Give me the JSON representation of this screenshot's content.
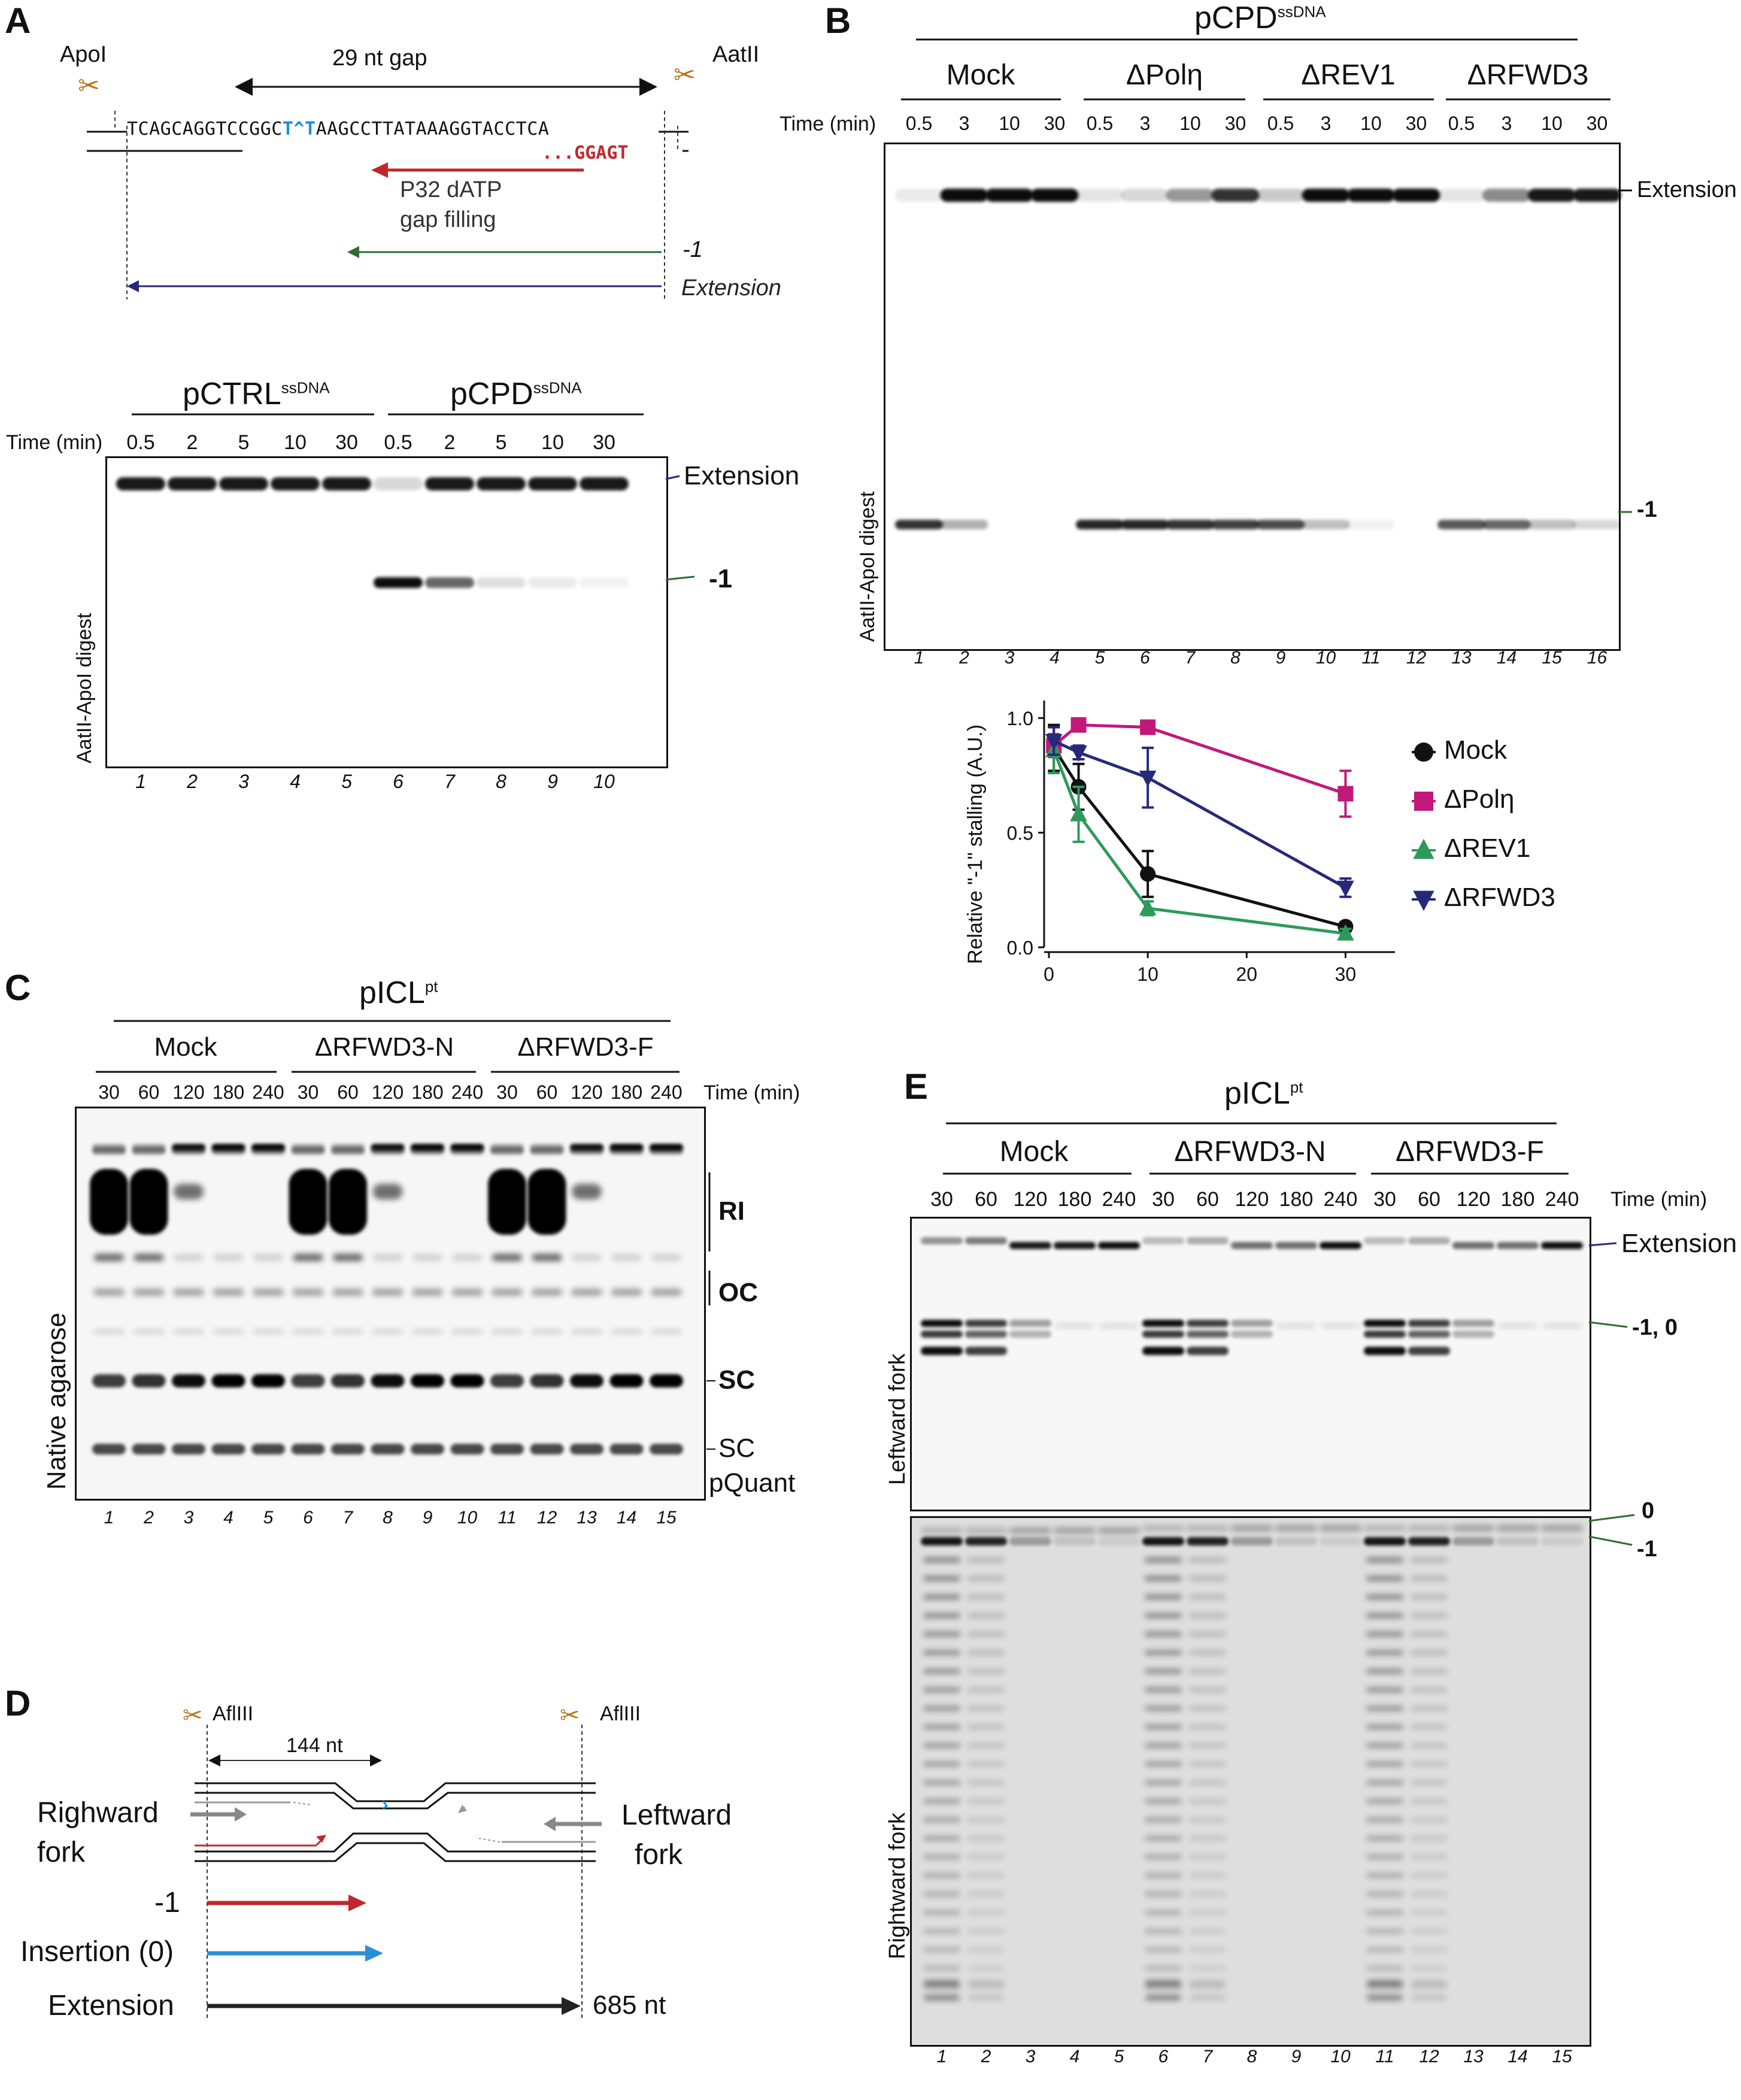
{
  "panels": {
    "A": "A",
    "B": "B",
    "C": "C",
    "D": "D",
    "E": "E"
  },
  "panelA": {
    "apoi": "ApoI",
    "aatii": "AatII",
    "gap": "29 nt gap",
    "seq_left": "TCAGCAGGTCCGGC",
    "seq_blue": "T^T",
    "seq_right": "AAGCCTTATAAAGGTACCTCA",
    "primer": "...GGAGT",
    "gapfill_l1": "P32 dATP",
    "gapfill_l2": "gap filling",
    "minus1": "-1",
    "extension": "Extension",
    "gel_left_title": "pCTRL",
    "gel_left_sup": "ssDNA",
    "gel_right_title": "pCPD",
    "gel_right_sup": "ssDNA",
    "time_label": "Time (min)",
    "times": [
      "0.5",
      "2",
      "5",
      "10",
      "30",
      "0.5",
      "2",
      "5",
      "10",
      "30"
    ],
    "lanes": [
      "1",
      "2",
      "3",
      "4",
      "5",
      "6",
      "7",
      "8",
      "9",
      "10"
    ],
    "band_ext": "Extension",
    "band_m1": "-1",
    "digest": "AatII-ApoI digest"
  },
  "panelB": {
    "title": "pCPD",
    "title_sup": "ssDNA",
    "groups": [
      "Mock",
      "ΔPolη",
      "ΔREV1",
      "ΔRFWD3"
    ],
    "time_label": "Time (min)",
    "times": [
      "0.5",
      "3",
      "10",
      "30",
      "0.5",
      "3",
      "10",
      "30",
      "0.5",
      "3",
      "10",
      "30",
      "0.5",
      "3",
      "10",
      "30"
    ],
    "lanes": [
      "1",
      "2",
      "3",
      "4",
      "5",
      "6",
      "7",
      "8",
      "9",
      "10",
      "11",
      "12",
      "13",
      "14",
      "15",
      "16"
    ],
    "band_ext": "Extension",
    "band_m1": "-1",
    "digest": "AatII-ApoI digest"
  },
  "chart_data": {
    "type": "line",
    "ylabel": "Relative \"-1\" stalling (A.U.)",
    "xlabel": "",
    "x": [
      0.5,
      3,
      10,
      30
    ],
    "xlim": [
      0,
      35
    ],
    "ylim": [
      0,
      1.05
    ],
    "xticks": [
      "0",
      "10",
      "20",
      "30"
    ],
    "yticks": [
      "0.0",
      "0.5",
      "1.0"
    ],
    "legend_position": "right",
    "series": [
      {
        "name": "Mock",
        "color": "#111111",
        "marker": "circle",
        "values": [
          0.87,
          0.7,
          0.32,
          0.09
        ],
        "err": [
          0.1,
          0.1,
          0.1,
          0.02
        ]
      },
      {
        "name": "ΔPolη",
        "color": "#c2187a",
        "marker": "square",
        "values": [
          0.88,
          0.97,
          0.96,
          0.67
        ],
        "err": [
          0.05,
          0.02,
          0.02,
          0.1
        ]
      },
      {
        "name": "ΔREV1",
        "color": "#2e9a5a",
        "marker": "triangle-up",
        "values": [
          0.86,
          0.58,
          0.17,
          0.06
        ],
        "err": [
          0.1,
          0.12,
          0.03,
          0.02
        ]
      },
      {
        "name": "ΔRFWD3",
        "color": "#28287a",
        "marker": "triangle-down",
        "values": [
          0.9,
          0.85,
          0.74,
          0.26
        ],
        "err": [
          0.06,
          0.03,
          0.13,
          0.04
        ]
      }
    ]
  },
  "panelC": {
    "title": "pICL",
    "title_sup": "pt",
    "groups": [
      "Mock",
      "ΔRFWD3-N",
      "ΔRFWD3-F"
    ],
    "time_label": "Time (min)",
    "times": [
      "30",
      "60",
      "120",
      "180",
      "240",
      "30",
      "60",
      "120",
      "180",
      "240",
      "30",
      "60",
      "120",
      "180",
      "240"
    ],
    "lanes": [
      "1",
      "2",
      "3",
      "4",
      "5",
      "6",
      "7",
      "8",
      "9",
      "10",
      "11",
      "12",
      "13",
      "14",
      "15"
    ],
    "bands": [
      "RI",
      "OC",
      "SC",
      "SC",
      "pQuant"
    ],
    "side": "Native agarose"
  },
  "panelD": {
    "aflIII_l": "AflIII",
    "aflIII_r": "AflIII",
    "nt144": "144 nt",
    "rightward_l1": "Righward",
    "rightward_l2": "fork",
    "leftward_l1": "Leftward",
    "leftward_l2": "fork",
    "minus1": "-1",
    "insertion": "Insertion (0)",
    "extension": "Extension",
    "nt685": "685 nt"
  },
  "panelE": {
    "title": "pICL",
    "title_sup": "pt",
    "groups": [
      "Mock",
      "ΔRFWD3-N",
      "ΔRFWD3-F"
    ],
    "time_label": "Time (min)",
    "times": [
      "30",
      "60",
      "120",
      "180",
      "240",
      "30",
      "60",
      "120",
      "180",
      "240",
      "30",
      "60",
      "120",
      "180",
      "240"
    ],
    "lanes": [
      "1",
      "2",
      "3",
      "4",
      "5",
      "6",
      "7",
      "8",
      "9",
      "10",
      "11",
      "12",
      "13",
      "14",
      "15"
    ],
    "band_ext": "Extension",
    "band_m10": "-1, 0",
    "band_0": "0",
    "band_m1": "-1",
    "side_top": "Leftward fork",
    "side_bottom": "Rightward fork"
  }
}
